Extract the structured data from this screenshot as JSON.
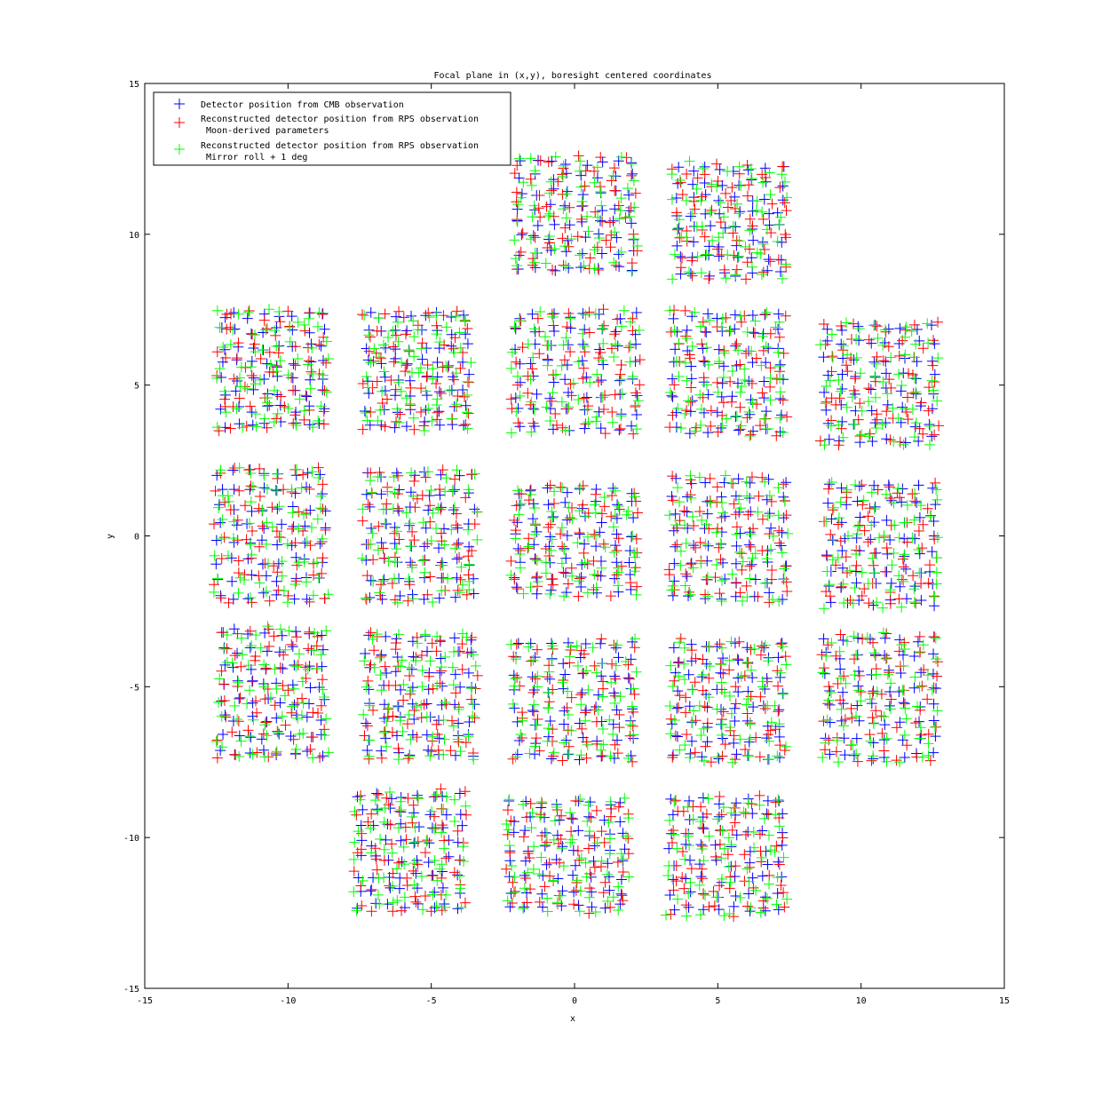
{
  "chart_data": {
    "type": "scatter",
    "title": "Focal plane in (x,y), boresight centered coordinates",
    "xlabel": "x",
    "ylabel": "y",
    "xlim": [
      -15,
      15
    ],
    "ylim": [
      -15,
      15
    ],
    "xticks": [
      -15,
      -10,
      -5,
      0,
      5,
      10,
      15
    ],
    "yticks": [
      15,
      10,
      5,
      0,
      -5,
      -10,
      -15
    ],
    "grid": false,
    "legend_position": "top-left",
    "marker": "+",
    "series": [
      {
        "name": "Detector position from CMB observation",
        "color": "#0000ff",
        "jitter": 0.12,
        "seed": 11
      },
      {
        "name": "Reconstructed detector position from RPS observation\n Moon-derived parameters",
        "color": "#ff0000",
        "jitter": 0.22,
        "seed": 23
      },
      {
        "name": "Reconstructed detector position from RPS observation\n Mirror roll + 1 deg",
        "color": "#00ff00",
        "jitter": 0.22,
        "seed": 37
      }
    ],
    "detector_blocks": [
      {
        "x0": -1.9,
        "x1": 2.0,
        "y0": 8.9,
        "y1": 12.4,
        "nx": 8,
        "ny": 8
      },
      {
        "x0": 3.6,
        "x1": 7.2,
        "y0": 8.7,
        "y1": 12.2,
        "nx": 8,
        "ny": 8
      },
      {
        "x0": -12.3,
        "x1": -8.8,
        "y0": 3.7,
        "y1": 7.3,
        "nx": 8,
        "ny": 8
      },
      {
        "x0": -7.2,
        "x1": -3.8,
        "y0": 3.7,
        "y1": 7.3,
        "nx": 8,
        "ny": 8
      },
      {
        "x0": -2.0,
        "x1": 2.1,
        "y0": 3.6,
        "y1": 7.3,
        "nx": 8,
        "ny": 8
      },
      {
        "x0": 3.5,
        "x1": 7.2,
        "y0": 3.5,
        "y1": 7.3,
        "nx": 8,
        "ny": 8
      },
      {
        "x0": 8.8,
        "x1": 12.5,
        "y0": 3.2,
        "y1": 6.9,
        "nx": 8,
        "ny": 8
      },
      {
        "x0": -12.4,
        "x1": -8.8,
        "y0": -2.0,
        "y1": 2.1,
        "nx": 8,
        "ny": 8
      },
      {
        "x0": -7.2,
        "x1": -3.6,
        "y0": -2.0,
        "y1": 2.0,
        "nx": 8,
        "ny": 8
      },
      {
        "x0": -2.0,
        "x1": 2.0,
        "y0": -1.8,
        "y1": 1.5,
        "nx": 8,
        "ny": 8
      },
      {
        "x0": 3.5,
        "x1": 7.3,
        "y0": -2.0,
        "y1": 1.8,
        "nx": 8,
        "ny": 8
      },
      {
        "x0": 8.9,
        "x1": 12.5,
        "y0": -2.2,
        "y1": 1.6,
        "nx": 8,
        "ny": 8
      },
      {
        "x0": -12.3,
        "x1": -8.8,
        "y0": -7.2,
        "y1": -3.2,
        "nx": 8,
        "ny": 8
      },
      {
        "x0": -7.2,
        "x1": -3.6,
        "y0": -7.2,
        "y1": -3.4,
        "nx": 8,
        "ny": 8
      },
      {
        "x0": -2.0,
        "x1": 2.0,
        "y0": -7.3,
        "y1": -3.6,
        "nx": 8,
        "ny": 8
      },
      {
        "x0": 3.5,
        "x1": 7.2,
        "y0": -7.3,
        "y1": -3.6,
        "nx": 8,
        "ny": 8
      },
      {
        "x0": 8.8,
        "x1": 12.5,
        "y0": -7.3,
        "y1": -3.4,
        "nx": 8,
        "ny": 8
      },
      {
        "x0": -7.5,
        "x1": -4.0,
        "y0": -12.3,
        "y1": -8.6,
        "nx": 8,
        "ny": 8
      },
      {
        "x0": -2.2,
        "x1": 1.7,
        "y0": -12.3,
        "y1": -8.9,
        "nx": 8,
        "ny": 8
      },
      {
        "x0": 3.4,
        "x1": 7.2,
        "y0": -12.4,
        "y1": -8.8,
        "nx": 8,
        "ny": 8
      }
    ]
  }
}
